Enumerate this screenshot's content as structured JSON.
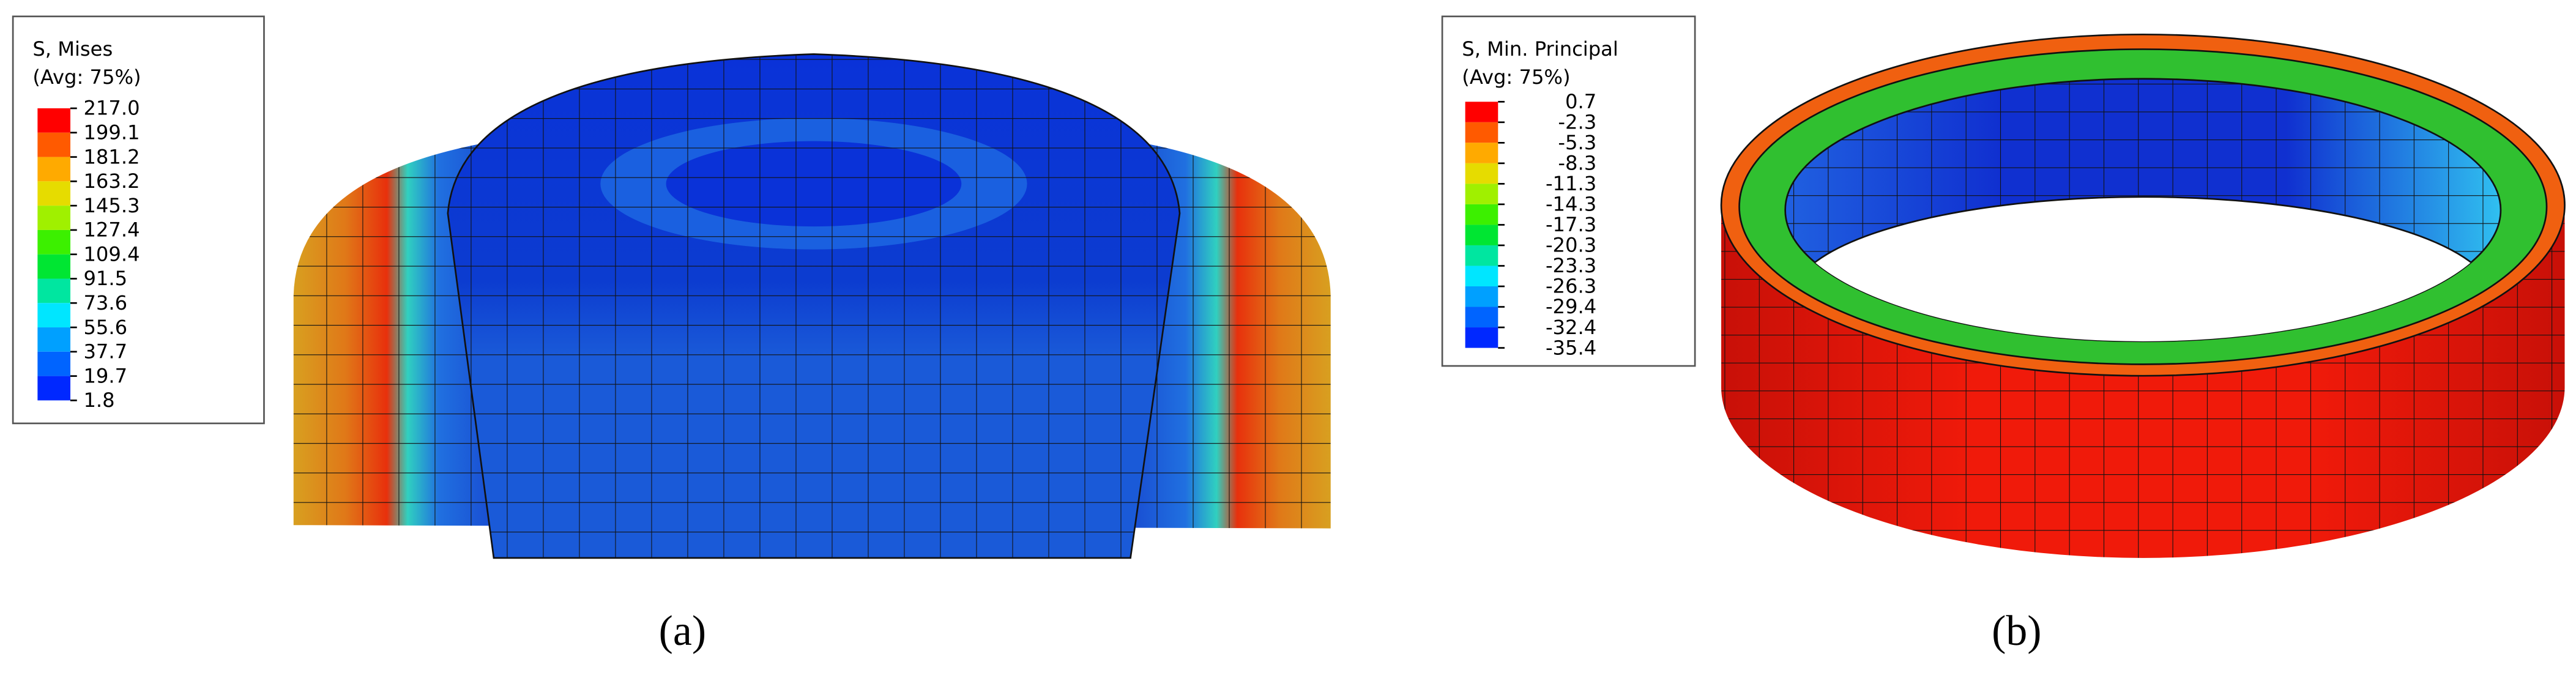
{
  "panels": [
    {
      "legend": {
        "title": "S, Mises",
        "subtitle": "(Avg: 75%)",
        "levels": [
          "217.0",
          "199.1",
          "181.2",
          "163.2",
          "145.3",
          "127.4",
          "109.4",
          "91.5",
          "73.6",
          "55.6",
          "37.7",
          "19.7",
          "1.8"
        ],
        "colors": [
          "#ff0000",
          "#ff5a00",
          "#ffaa00",
          "#e6dc00",
          "#a0f000",
          "#3cf000",
          "#00e632",
          "#00e6a0",
          "#00e6ff",
          "#00a0ff",
          "#0064ff",
          "#0028ff"
        ]
      },
      "caption": "(a)"
    },
    {
      "legend": {
        "title": "S, Min. Principal",
        "subtitle": "(Avg: 75%)",
        "levels": [
          "0.7",
          "-2.3",
          "-5.3",
          "-8.3",
          "-11.3",
          "-14.3",
          "-17.3",
          "-20.3",
          "-23.3",
          "-26.3",
          "-29.4",
          "-32.4",
          "-35.4"
        ],
        "colors": [
          "#ff0000",
          "#ff5a00",
          "#ffaa00",
          "#e6dc00",
          "#a0f000",
          "#3cf000",
          "#00e632",
          "#00e6a0",
          "#00e6ff",
          "#00a0ff",
          "#0064ff",
          "#0028ff"
        ]
      },
      "caption": "(b)"
    }
  ]
}
